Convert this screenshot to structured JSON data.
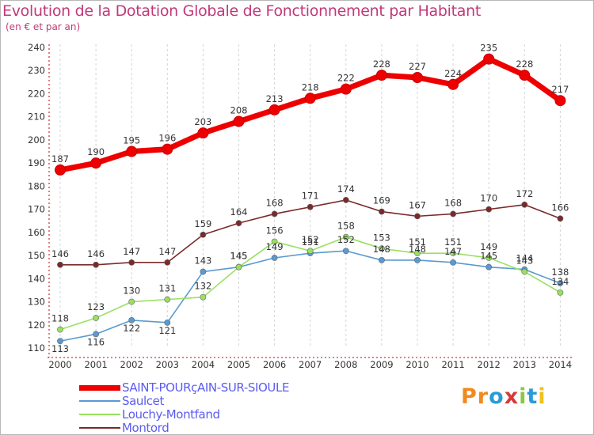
{
  "page": {
    "title": "Evolution de la Dotation Globale de Fonctionnement par Habitant",
    "subtitle": "(en € et par an)",
    "brand": "Proxiti"
  },
  "chart_data": {
    "type": "line",
    "title": "Evolution de la Dotation Globale de Fonctionnement par Habitant",
    "subtitle": "(en € et par an)",
    "xlabel": "",
    "ylabel": "",
    "x": [
      "2000",
      "2001",
      "2002",
      "2003",
      "2004",
      "2005",
      "2006",
      "2007",
      "2008",
      "2009",
      "2010",
      "2011",
      "2012",
      "2013",
      "2014"
    ],
    "ylim": [
      110,
      240
    ],
    "yticks": [
      110,
      120,
      130,
      140,
      150,
      160,
      170,
      180,
      190,
      200,
      210,
      220,
      230,
      240
    ],
    "grid": "vertical dashed",
    "legend_position": "bottom-left",
    "series": [
      {
        "name": "SAINT-POURçAIN-SUR-SIOULE",
        "color": "#ee0000",
        "values": [
          187,
          190,
          195,
          196,
          203,
          208,
          213,
          218,
          222,
          228,
          227,
          224,
          235,
          228,
          217
        ]
      },
      {
        "name": "Saulcet",
        "color": "#5a9ad2",
        "values": [
          113,
          116,
          122,
          121,
          143,
          145,
          149,
          151,
          152,
          148,
          148,
          147,
          145,
          144,
          138
        ]
      },
      {
        "name": "Louchy-Montfand",
        "color": "#99e060",
        "values": [
          118,
          123,
          130,
          131,
          132,
          145,
          156,
          152,
          158,
          153,
          151,
          151,
          149,
          143,
          134
        ]
      },
      {
        "name": "Montord",
        "color": "#7a2a2a",
        "values": [
          146,
          146,
          147,
          147,
          159,
          164,
          168,
          171,
          174,
          169,
          167,
          168,
          170,
          172,
          166
        ]
      }
    ]
  }
}
